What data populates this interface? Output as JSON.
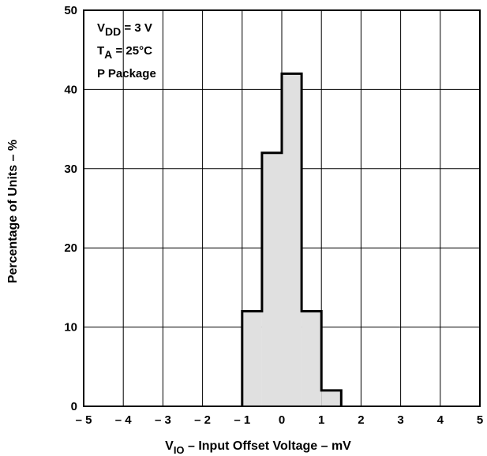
{
  "chart_data": {
    "type": "bar",
    "xlabel": "V_IO – Input Offset Voltage – mV",
    "xlabel_sub": {
      "main": "V",
      "sub": "IO",
      "rest": " – Input Offset Voltage – mV"
    },
    "ylabel": "Percentage of Units – %",
    "xlim": [
      -5,
      5
    ],
    "ylim": [
      0,
      50
    ],
    "x_ticks": [
      -5,
      -4,
      -3,
      -2,
      -1,
      0,
      1,
      2,
      3,
      4,
      5
    ],
    "x_tick_labels": [
      "– 5",
      "– 4",
      "– 3",
      "– 2",
      "– 1",
      "0",
      "1",
      "2",
      "3",
      "4",
      "5"
    ],
    "y_ticks": [
      0,
      10,
      20,
      30,
      40,
      50
    ],
    "y_tick_labels": [
      "0",
      "10",
      "20",
      "30",
      "40",
      "50"
    ],
    "grid": true,
    "bin_width": 0.5,
    "bins": [
      {
        "x_start": -1.0,
        "x_end": -0.5,
        "value": 12
      },
      {
        "x_start": -0.5,
        "x_end": 0.0,
        "value": 32
      },
      {
        "x_start": 0.0,
        "x_end": 0.5,
        "value": 42
      },
      {
        "x_start": 0.5,
        "x_end": 1.0,
        "value": 12
      },
      {
        "x_start": 1.0,
        "x_end": 1.5,
        "value": 2
      }
    ],
    "colors": {
      "fill": "#e0e0e0",
      "stroke": "#000000"
    },
    "annotations": [
      {
        "name": "vdd",
        "main": "V",
        "sub": "DD",
        "rest": " = 3 V"
      },
      {
        "name": "ta",
        "main": "T",
        "sub": "A",
        "rest": " = 25°C"
      },
      {
        "name": "package",
        "main": "P Package",
        "sub": "",
        "rest": ""
      }
    ]
  }
}
